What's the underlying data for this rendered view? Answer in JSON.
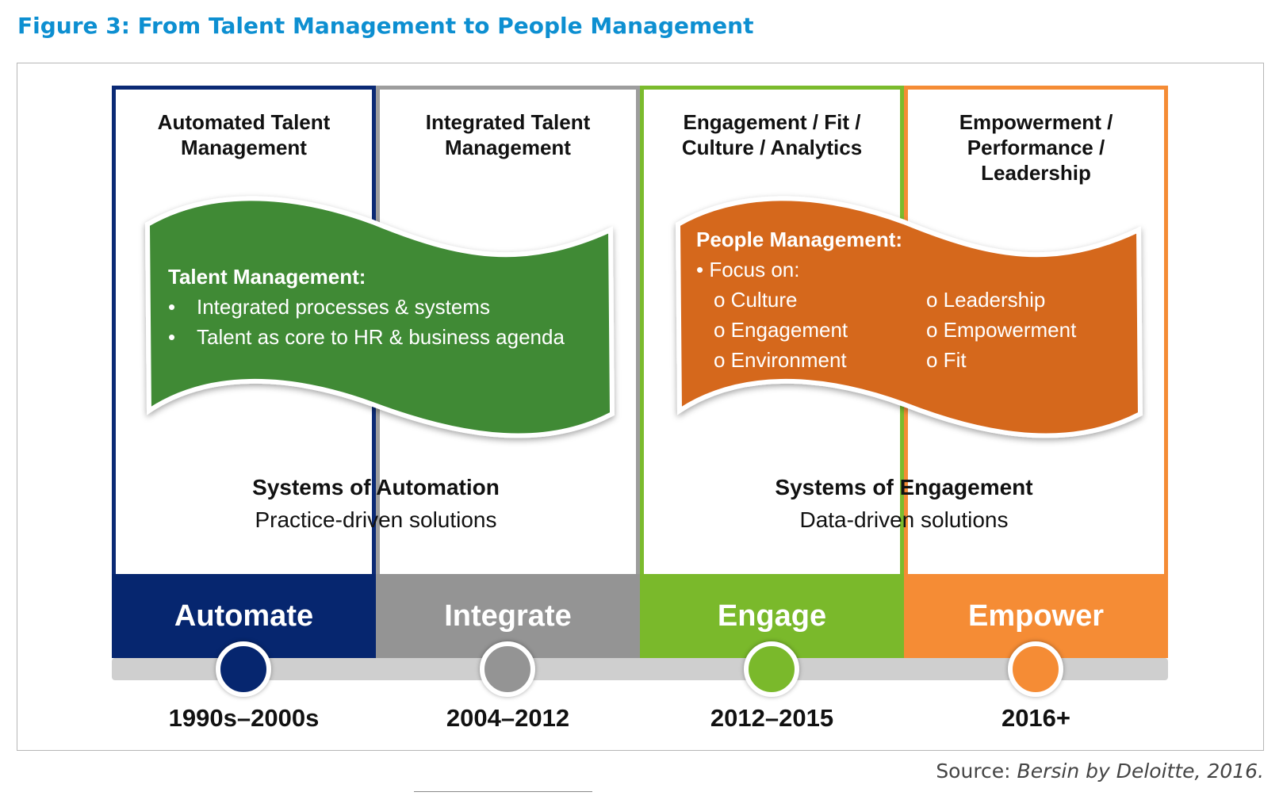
{
  "title": "Figure 3: From Talent Management to People Management",
  "columns": [
    {
      "heading": "Automated Talent Management",
      "stage": "Automate",
      "period": "1990s–2000s",
      "color": "#06266f"
    },
    {
      "heading": "Integrated Talent Management",
      "stage": "Integrate",
      "period": "2004–2012",
      "color": "#949494"
    },
    {
      "heading": "Engagement / Fit / Culture / Analytics",
      "stage": "Engage",
      "period": "2012–2015",
      "color": "#7ab92b"
    },
    {
      "heading": "Empowerment / Performance / Leadership",
      "stage": "Empower",
      "period": "2016+",
      "color": "#f58c35"
    }
  ],
  "talent_flag": {
    "heading": "Talent Management:",
    "bullets": [
      "Integrated processes & systems",
      "Talent as core to HR & business agenda"
    ],
    "color": "#3f8a35"
  },
  "people_flag": {
    "heading": "People Management:",
    "focus": "• Focus on:",
    "items_left": [
      "o Culture",
      "o Engagement",
      "o Environment"
    ],
    "items_right": [
      "o Leadership",
      "o Empowerment",
      "o Fit"
    ],
    "color": "#d5681f"
  },
  "systems": [
    {
      "heading": "Systems of Automation",
      "sub": "Practice-driven solutions"
    },
    {
      "heading": "Systems of Engagement",
      "sub": "Data-driven solutions"
    }
  ],
  "source": {
    "label": "Source: ",
    "text": "Bersin by Deloitte, 2016."
  }
}
